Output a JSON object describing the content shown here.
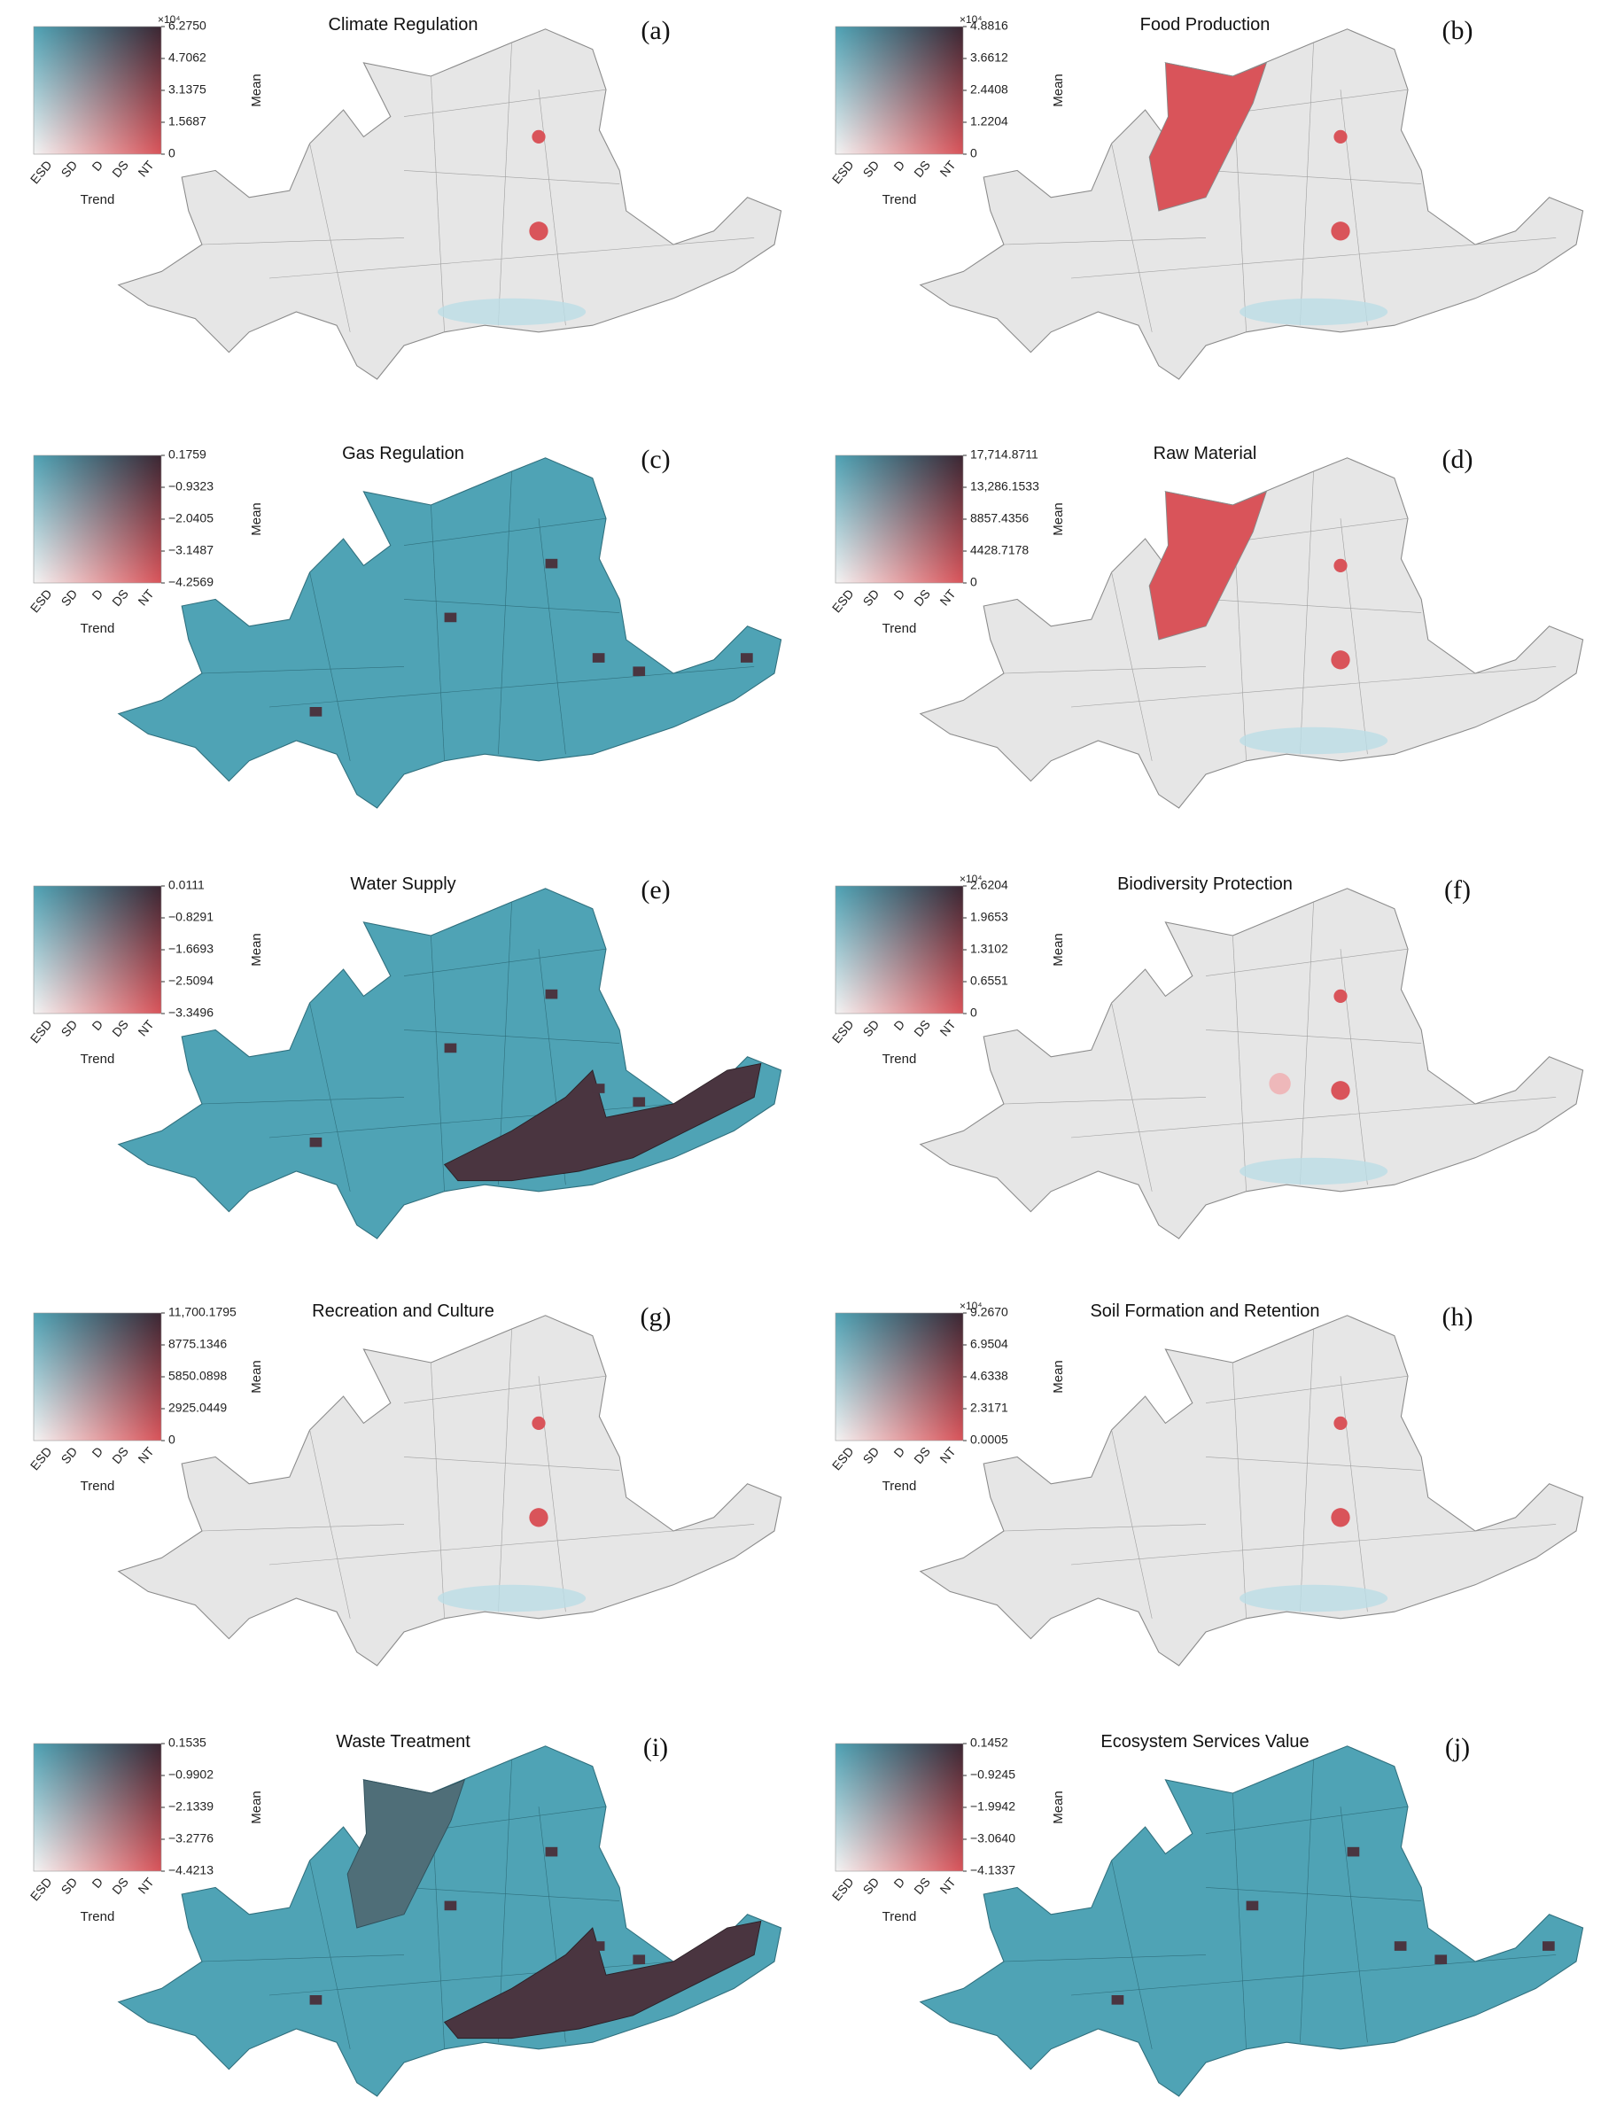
{
  "trend_categories": [
    "ESD",
    "SD",
    "D",
    "DS",
    "NT"
  ],
  "trend_label": "Trend",
  "mean_label": "Mean",
  "panels": [
    {
      "title": "Climate Regulation",
      "label": "(a)",
      "multiplier": "×10⁴",
      "mean_ticks": [
        "6.2750",
        "4.7062",
        "3.1375",
        "1.5687",
        "0"
      ]
    },
    {
      "title": "Food Production",
      "label": "(b)",
      "multiplier": "×10⁴",
      "mean_ticks": [
        "4.8816",
        "3.6612",
        "2.4408",
        "1.2204",
        "0"
      ]
    },
    {
      "title": "Gas Regulation",
      "label": "(c)",
      "mean_ticks": [
        "0.1759",
        "−0.9323",
        "−2.0405",
        "−3.1487",
        "−4.2569"
      ]
    },
    {
      "title": "Raw Material",
      "label": "(d)",
      "mean_ticks": [
        "17,714.8711",
        "13,286.1533",
        "8857.4356",
        "4428.7178",
        "0"
      ]
    },
    {
      "title": "Water Supply",
      "label": "(e)",
      "mean_ticks": [
        "0.0111",
        "−0.8291",
        "−1.6693",
        "−2.5094",
        "−3.3496"
      ]
    },
    {
      "title": "Biodiversity Protection",
      "label": "(f)",
      "multiplier": "×10⁴",
      "mean_ticks": [
        "2.6204",
        "1.9653",
        "1.3102",
        "0.6551",
        "0"
      ]
    },
    {
      "title": "Recreation and Culture",
      "label": "(g)",
      "mean_ticks": [
        "11,700.1795",
        "8775.1346",
        "5850.0898",
        "2925.0449",
        "0"
      ]
    },
    {
      "title": "Soil Formation and Retention",
      "label": "(h)",
      "multiplier": "×10⁴",
      "mean_ticks": [
        "9.2670",
        "6.9504",
        "4.6338",
        "2.3171",
        "0.0005"
      ]
    },
    {
      "title": "Waste Treatment",
      "label": "(i)",
      "mean_ticks": [
        "0.1535",
        "−0.9902",
        "−2.1339",
        "−3.2776",
        "−4.4213"
      ]
    },
    {
      "title": "Ecosystem Services Value",
      "label": "(j)",
      "mean_ticks": [
        "0.1452",
        "−0.9245",
        "−1.9942",
        "−3.0640",
        "−4.1337"
      ]
    }
  ]
}
